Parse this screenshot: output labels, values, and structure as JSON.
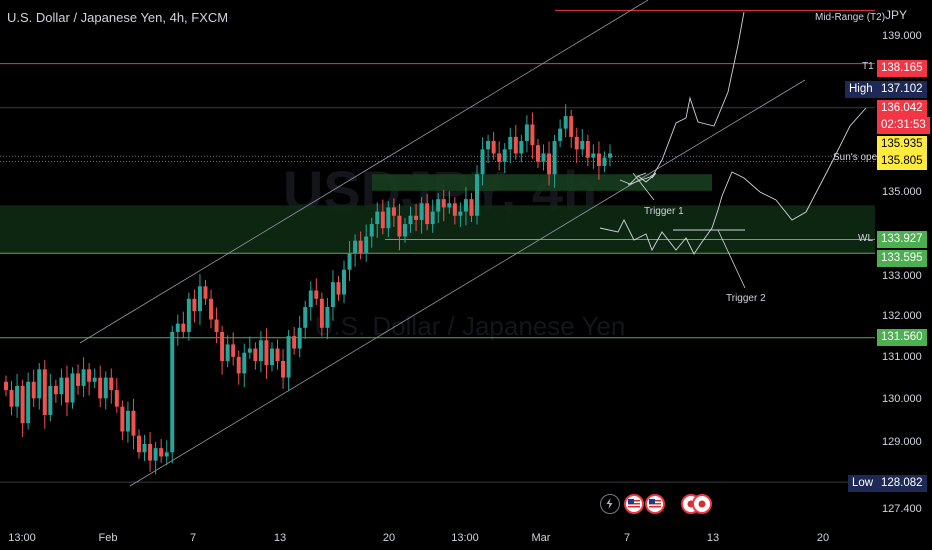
{
  "header": {
    "title": "U.S. Dollar / Japanese Yen, 4h, FXCM",
    "currency": "JPY"
  },
  "colors": {
    "background": "#000000",
    "up": "#26a69a",
    "down": "#ef5350",
    "red_line": "#f23645",
    "green_line": "#4caf50",
    "zone": "#0e2a14",
    "yellow_badge": "#ffeb3b",
    "navy_badge": "#1e2a55"
  },
  "watermark": {
    "symbol": "USDJPY, 4h",
    "name": "U.S. Dollar / Japanese Yen"
  },
  "price_axis": {
    "ticks": [
      "139.000",
      "135.000",
      "133.000",
      "132.000",
      "131.000",
      "130.000",
      "129.000",
      "127.400"
    ]
  },
  "time_axis": {
    "ticks": [
      "13:00",
      "Feb",
      "7",
      "13",
      "20",
      "13:00",
      "Mar",
      "7",
      "13",
      "20"
    ]
  },
  "levels": {
    "mid_range": {
      "label": "Mid-Range (T2)",
      "price": 139.45
    },
    "t1": {
      "label": "T1",
      "price": 138.165,
      "badge": "138.165"
    },
    "high": {
      "label": "High",
      "price": 137.102,
      "badge": "137.102"
    },
    "current": {
      "price": 136.042,
      "badge": "136.042",
      "countdown": "02:31:53"
    },
    "sun_open": {
      "label": "Sun's open",
      "price": 135.87,
      "badges": [
        "135.935",
        "135.805"
      ]
    },
    "wl": {
      "label": "WL",
      "price": 133.927,
      "badge": "133.927"
    },
    "upper_zone": {
      "price": 133.595,
      "badge": "133.595"
    },
    "support": {
      "price": 131.56,
      "badge": "131.560"
    },
    "low": {
      "label": "Low",
      "price": 128.082,
      "badge": "128.082"
    }
  },
  "annotations": {
    "trigger1": "Trigger 1",
    "trigger2": "Trigger 2"
  },
  "chart_data": {
    "type": "candlestick",
    "symbol": "USDJPY",
    "timeframe": "4h",
    "y_range": [
      127.4,
      139.8
    ],
    "candles_close": [
      130.3,
      129.9,
      130.4,
      129.5,
      130.5,
      130.1,
      130.8,
      129.7,
      130.4,
      130.2,
      130.6,
      130.0,
      130.7,
      130.4,
      130.8,
      130.5,
      130.6,
      130.1,
      130.6,
      130.3,
      129.9,
      129.3,
      129.8,
      129.2,
      128.8,
      129.0,
      128.6,
      128.9,
      128.7,
      128.8,
      131.7,
      131.9,
      131.7,
      132.5,
      132.2,
      132.8,
      132.5,
      132.0,
      131.7,
      131.0,
      131.4,
      131.1,
      130.7,
      131.2,
      131.3,
      131.0,
      131.5,
      130.9,
      131.3,
      131.0,
      130.6,
      131.6,
      131.3,
      131.8,
      132.3,
      132.7,
      132.5,
      131.8,
      132.3,
      132.9,
      132.6,
      133.2,
      133.6,
      133.9,
      133.6,
      134.0,
      134.3,
      134.6,
      134.2,
      134.7,
      134.5,
      134.0,
      134.3,
      134.5,
      134.4,
      134.8,
      134.3,
      134.6,
      134.9,
      134.7,
      134.8,
      134.5,
      134.6,
      134.9,
      134.5,
      135.5,
      136.1,
      136.3,
      136.0,
      135.8,
      136.1,
      136.4,
      136.0,
      136.3,
      136.7,
      136.2,
      135.8,
      136.0,
      135.5,
      136.3,
      136.6,
      136.9,
      136.4,
      136.1,
      136.3,
      135.9,
      136.0,
      135.7,
      135.9,
      136.0
    ]
  }
}
